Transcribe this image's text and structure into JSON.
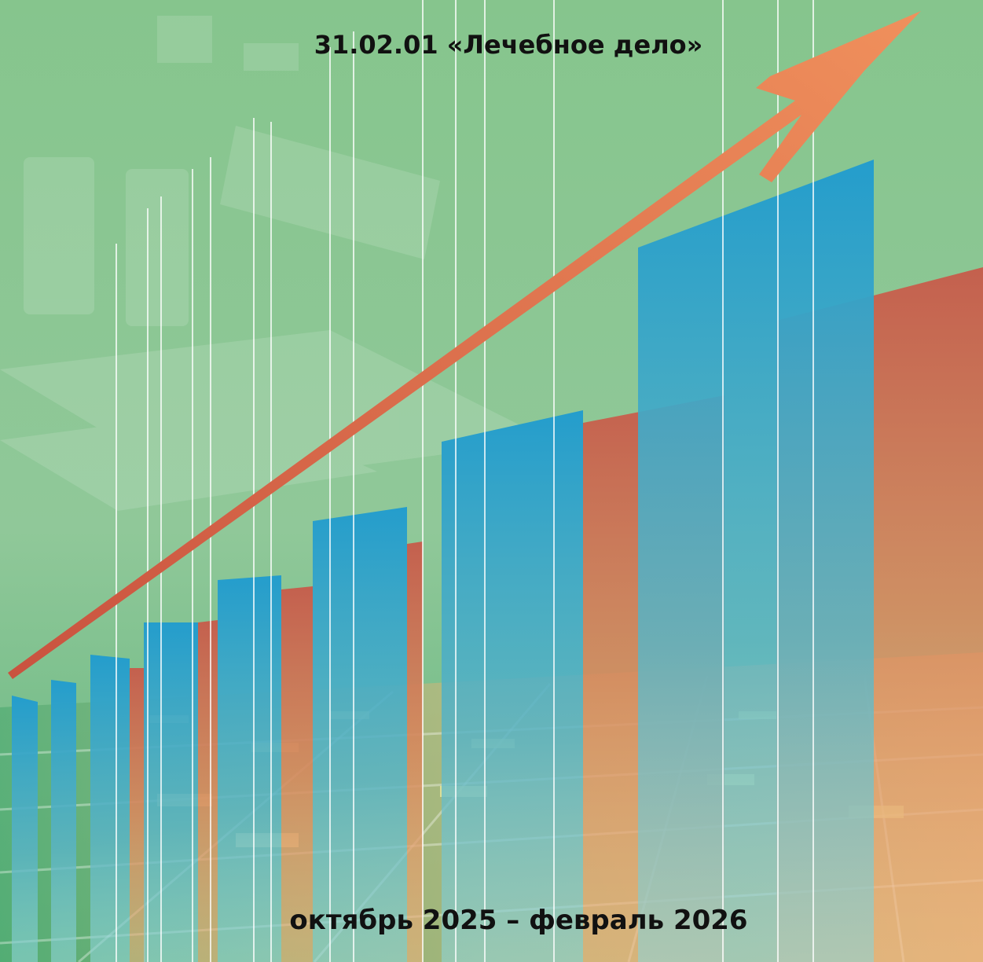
{
  "header": {
    "title": "31.02.01 «Лечебное дело»"
  },
  "footer": {
    "period": "октябрь 2025 – февраль 2026"
  }
}
